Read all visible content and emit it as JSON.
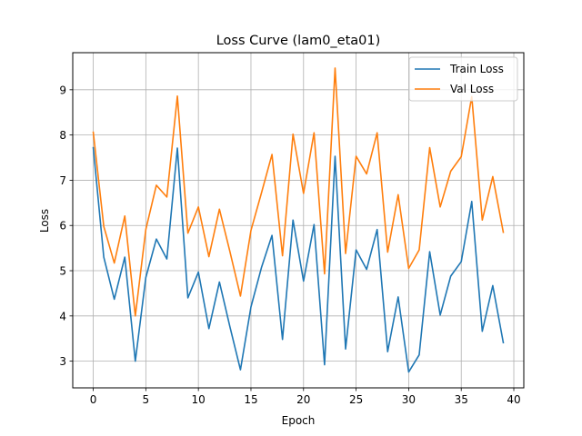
{
  "chart_data": {
    "type": "line",
    "title": "Loss Curve (lam0_eta01)",
    "xlabel": "Epoch",
    "ylabel": "Loss",
    "xlim": [
      -1.95,
      40.95
    ],
    "ylim": [
      2.41,
      9.82
    ],
    "xticks": [
      0,
      5,
      10,
      15,
      20,
      25,
      30,
      35,
      40
    ],
    "yticks": [
      3,
      4,
      5,
      6,
      7,
      8,
      9
    ],
    "grid": true,
    "legend_position": "top-right",
    "x": [
      0,
      1,
      2,
      3,
      4,
      5,
      6,
      7,
      8,
      9,
      10,
      11,
      12,
      13,
      14,
      15,
      16,
      17,
      18,
      19,
      20,
      21,
      22,
      23,
      24,
      25,
      26,
      27,
      28,
      29,
      30,
      31,
      32,
      33,
      34,
      35,
      36,
      37,
      38,
      39
    ],
    "series": [
      {
        "name": "Train Loss",
        "color": "#1f77b4",
        "values": [
          7.72,
          5.3,
          4.37,
          5.3,
          3.0,
          4.85,
          5.7,
          5.26,
          7.71,
          4.4,
          4.97,
          3.72,
          4.75,
          3.76,
          2.81,
          4.2,
          5.07,
          5.78,
          3.48,
          6.12,
          4.77,
          6.02,
          2.92,
          7.53,
          3.27,
          5.46,
          5.03,
          5.91,
          3.21,
          4.42,
          2.76,
          3.14,
          5.42,
          4.02,
          4.88,
          5.2,
          6.53,
          3.66,
          4.67,
          3.41
        ]
      },
      {
        "name": "Val Loss",
        "color": "#ff7f0e",
        "values": [
          8.06,
          5.98,
          5.17,
          6.21,
          4.0,
          5.91,
          6.89,
          6.63,
          8.86,
          5.83,
          6.41,
          5.31,
          6.36,
          5.42,
          4.44,
          5.89,
          6.72,
          7.57,
          5.33,
          8.02,
          6.71,
          8.05,
          4.93,
          9.48,
          5.38,
          7.53,
          7.14,
          8.05,
          5.41,
          6.68,
          5.05,
          5.46,
          7.72,
          6.41,
          7.2,
          7.52,
          8.85,
          6.12,
          7.08,
          5.85
        ]
      }
    ]
  }
}
